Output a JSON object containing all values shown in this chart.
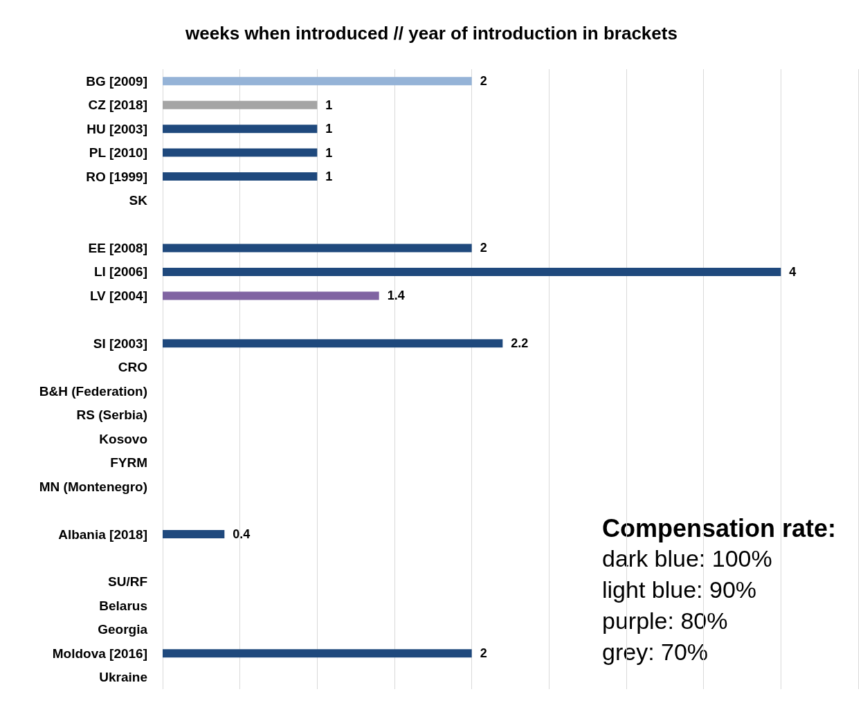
{
  "chart_data": {
    "type": "bar",
    "orientation": "horizontal",
    "title": "weeks when introduced // year of introduction in brackets",
    "categories": [
      "BG [2009]",
      "CZ [2018]",
      "HU [2003]",
      "PL [2010]",
      "RO [1999]",
      "SK",
      null,
      "EE [2008]",
      "LI [2006]",
      "LV [2004]",
      null,
      "SI [2003]",
      "CRO",
      "B&H (Federation)",
      "RS (Serbia)",
      "Kosovo",
      "FYRM",
      "MN (Montenegro)",
      null,
      "Albania [2018]",
      null,
      "SU/RF",
      "Belarus",
      "Georgia",
      "Moldova [2016]",
      "Ukraine"
    ],
    "values": [
      2,
      1,
      1,
      1,
      1,
      null,
      null,
      2,
      4,
      1.4,
      null,
      2.2,
      null,
      null,
      null,
      null,
      null,
      null,
      null,
      0.4,
      null,
      null,
      null,
      null,
      2,
      null
    ],
    "colors": [
      "#95b3d7",
      "#a5a5a5",
      "#1f497d",
      "#1f497d",
      "#1f497d",
      null,
      null,
      "#1f497d",
      "#1f497d",
      "#8064a2",
      null,
      "#1f497d",
      null,
      null,
      null,
      null,
      null,
      null,
      null,
      "#1f497d",
      null,
      null,
      null,
      null,
      "#1f497d",
      null
    ],
    "xlim": [
      0,
      4.5
    ],
    "xticks": [
      {
        "value": 0,
        "label": null
      },
      {
        "value": 0.5,
        "label": null
      },
      {
        "value": 1,
        "label": null
      },
      {
        "value": 1.5,
        "label": null
      },
      {
        "value": 2,
        "label": null
      },
      {
        "value": 2.5,
        "label": null
      },
      {
        "value": 3,
        "label": null
      },
      {
        "value": 3.5,
        "label": null
      },
      {
        "value": 4,
        "label": null
      },
      {
        "value": 4.5,
        "label": null
      }
    ],
    "tick_labels": "y",
    "grid": "x",
    "data_labels": true,
    "annotations": [
      "Compensation rate:",
      "dark blue: 100%",
      "light blue: 90%",
      "purple: 80%",
      "grey: 70%"
    ]
  }
}
